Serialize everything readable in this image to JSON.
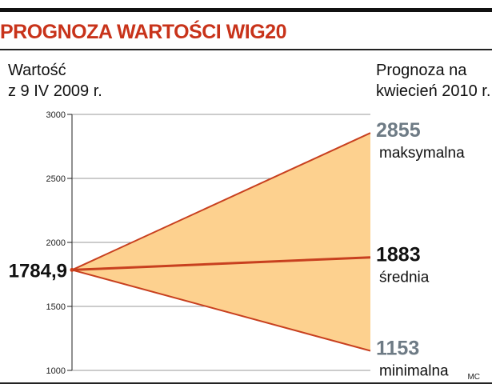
{
  "header": {
    "title": "PROGNOZA WARTOŚCI WIG20",
    "left_line1": "Wartość",
    "left_line2": "z 9 IV 2009 r.",
    "right_line1": "Prognoza na",
    "right_line2": "kwiecień 2010 r."
  },
  "credit": "MC",
  "colors": {
    "title": "#c8331a",
    "band_fill": "#fdd18f",
    "line": "#c8401f",
    "max_value": "#6e7b85",
    "avg_value": "#111111",
    "min_value": "#6e7b85"
  },
  "chart_data": {
    "type": "area",
    "title": "PROGNOZA WARTOŚCI WIG20",
    "ylim": [
      1000,
      3000
    ],
    "yticks": [
      1000,
      1500,
      2000,
      2500,
      3000
    ],
    "ytick_labels": [
      "1000",
      "1500",
      "2000",
      "2500",
      "3000"
    ],
    "grid": true,
    "x": [
      "9 IV 2009",
      "kwiecień 2010"
    ],
    "start_value": 1784.9,
    "start_label": "1784,9",
    "series": [
      {
        "name": "maksymalna",
        "values": [
          1784.9,
          2855
        ],
        "end_label": "2855"
      },
      {
        "name": "średnia",
        "values": [
          1784.9,
          1883
        ],
        "end_label": "1883"
      },
      {
        "name": "minimalna",
        "values": [
          1784.9,
          1153
        ],
        "end_label": "1153"
      }
    ]
  }
}
